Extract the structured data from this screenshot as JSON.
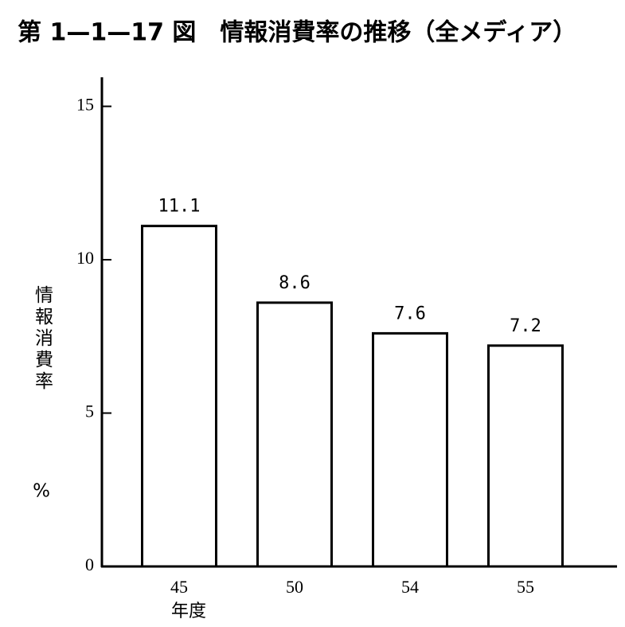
{
  "chart_data": {
    "type": "bar",
    "title": "第 1—1—17 図　情報消費率の推移（全メディア）",
    "y_label": "情報消費率",
    "y_unit": "%",
    "x_label": "年度",
    "categories": [
      "45",
      "50",
      "54",
      "55"
    ],
    "values": [
      11.1,
      8.6,
      7.6,
      7.2
    ],
    "color": "#ffffff",
    "ylim": [
      0,
      16
    ],
    "yticks": [
      0,
      5,
      10,
      15
    ],
    "grid": false
  }
}
